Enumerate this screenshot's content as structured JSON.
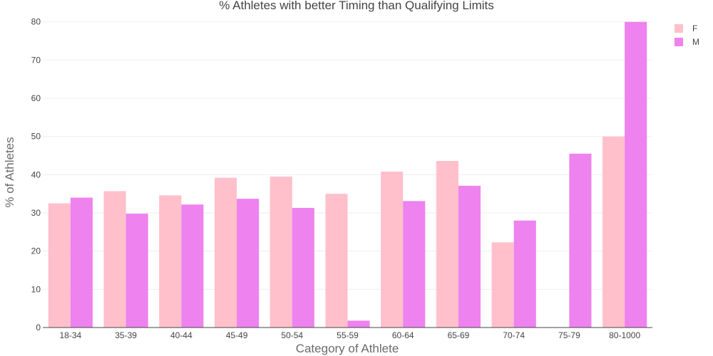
{
  "chart_data": {
    "type": "bar",
    "title": "% Athletes with better Timing than Qualifying Limits",
    "xlabel": "Category of Athlete",
    "ylabel": "% of Athletes",
    "categories": [
      "18-34",
      "35-39",
      "40-44",
      "45-49",
      "50-54",
      "55-59",
      "60-64",
      "65-69",
      "70-74",
      "75-79",
      "80-1000"
    ],
    "series": [
      {
        "name": "F",
        "color": "#ffc0cb",
        "values": [
          32.5,
          35.7,
          34.6,
          39.2,
          39.5,
          35.0,
          40.8,
          43.6,
          22.3,
          0,
          50.0
        ]
      },
      {
        "name": "M",
        "color": "#ee82ee",
        "values": [
          34.0,
          29.8,
          32.2,
          33.7,
          31.3,
          1.8,
          33.1,
          37.1,
          28.0,
          45.5,
          80.0
        ]
      }
    ],
    "ylim": [
      0,
      82
    ],
    "yticks": [
      0,
      10,
      20,
      30,
      40,
      50,
      60,
      70,
      80
    ],
    "grid": true,
    "legend_position": "top-right"
  }
}
